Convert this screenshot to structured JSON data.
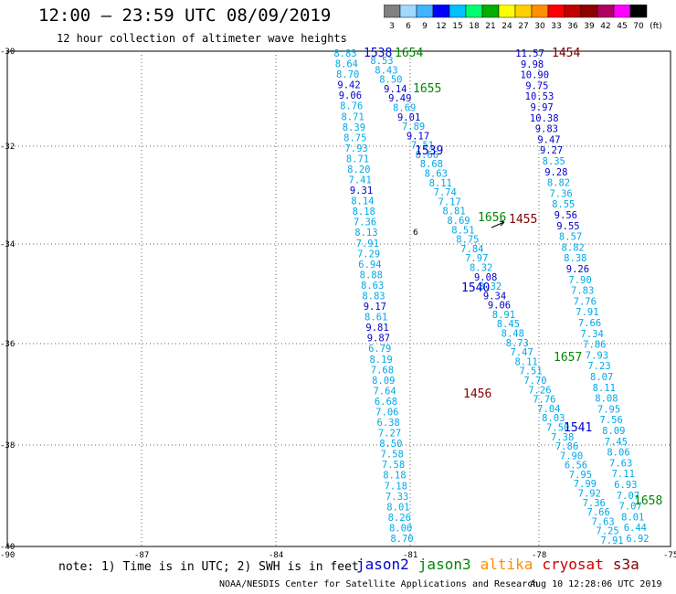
{
  "header": {
    "title": "12:00 — 23:59 UTC 08/09/2019",
    "subtitle": "12 hour collection of altimeter wave heights"
  },
  "colorbar": {
    "labels": [
      "3",
      "6",
      "9",
      "12",
      "15",
      "18",
      "21",
      "24",
      "27",
      "30",
      "33",
      "36",
      "39",
      "42",
      "45",
      "70",
      "(ft)"
    ],
    "colors": [
      "#808080",
      "#a0d8ff",
      "#40b4ff",
      "#0000ff",
      "#00c0ff",
      "#00ff70",
      "#00b000",
      "#ffff00",
      "#ffd000",
      "#ff9000",
      "#ff0000",
      "#c00000",
      "#900000",
      "#b00060",
      "#ff00ff",
      "#000000"
    ]
  },
  "map": {
    "lon_ticks": [
      "-90",
      "-87",
      "-84",
      "-81",
      "-78",
      "-75"
    ],
    "lat_ticks": [
      "-30",
      "-32",
      "-34",
      "-36",
      "-38",
      "-40"
    ]
  },
  "passes": [
    {
      "label": "1538",
      "color": "#0000cc"
    },
    {
      "label": "1654",
      "color": "#008800"
    },
    {
      "label": "1454",
      "color": "#800000"
    },
    {
      "label": "1655",
      "color": "#008800"
    },
    {
      "label": "1539",
      "color": "#0000cc"
    },
    {
      "label": "1656",
      "color": "#008800"
    },
    {
      "label": "1455",
      "color": "#800000"
    },
    {
      "label": "1540",
      "color": "#0000cc"
    },
    {
      "label": "1657",
      "color": "#008800"
    },
    {
      "label": "1456",
      "color": "#800000"
    },
    {
      "label": "1541",
      "color": "#0000cc"
    },
    {
      "label": "1658",
      "color": "#008800"
    }
  ],
  "tracks": {
    "a_values": [
      "8.83",
      "8.64",
      "8.70",
      "9.42",
      "9.06",
      "8.76",
      "8.71",
      "8.39",
      "8.75",
      "7.93",
      "8.71",
      "8.20",
      "7.41",
      "9.31",
      "8.14",
      "8.18",
      "7.36",
      "8.13",
      "7.91",
      "7.29",
      "6.94",
      "8.88",
      "8.63",
      "8.83",
      "9.17",
      "8.61",
      "9.81",
      "9.87",
      "6.79",
      "8.19",
      "7.68",
      "8.09",
      "7.64",
      "6.68",
      "7.06",
      "6.38",
      "7.27",
      "8.50",
      "7.58",
      "7.58",
      "8.18",
      "7.18",
      "7.33",
      "8.01",
      "8.26",
      "8.00",
      "8.70"
    ],
    "b_values": [
      "8.53",
      "8.43",
      "8.50",
      "9.14",
      "9.49",
      "8.69",
      "9.01",
      "7.89",
      "9.17",
      "7.51",
      "8.66",
      "8.68",
      "8.63",
      "8.11",
      "7.74",
      "7.17",
      "8.81",
      "8.69",
      "8.51",
      "8.75",
      "7.84",
      "7.97",
      "8.32",
      "9.08",
      "8.32",
      "9.34",
      "9.06",
      "8.91",
      "8.45",
      "8.48",
      "8.73",
      "7.47",
      "8.11",
      "7.51",
      "7.70",
      "7.26",
      "7.76",
      "7.04",
      "8.03",
      "7.50",
      "7.38",
      "7.86",
      "7.90",
      "6.56",
      "7.95",
      "7.99",
      "7.92",
      "7.36",
      "7.66",
      "7.63",
      "7.25",
      "7.91"
    ],
    "c_values": [
      "11.57",
      "9.98",
      "10.90",
      "9.75",
      "10.53",
      "9.97",
      "10.38",
      "9.83",
      "9.47",
      "9.27",
      "8.35",
      "9.28",
      "8.82",
      "7.36",
      "8.55",
      "9.56",
      "9.55",
      "8.57",
      "8.82",
      "8.38",
      "9.26",
      "7.90",
      "7.83",
      "7.76",
      "7.91",
      "7.66",
      "7.34",
      "7.86",
      "7.93",
      "7.23",
      "8.07",
      "8.11",
      "8.08",
      "7.95",
      "7.56",
      "8.09",
      "7.45",
      "8.06",
      "7.63",
      "7.11",
      "6.93",
      "7.07",
      "7.07",
      "8.01",
      "6.44",
      "6.92"
    ]
  },
  "note": "note: 1) Time is in UTC; 2) SWH is in feet",
  "legend": [
    {
      "name": "jason2",
      "color": "#0000cc"
    },
    {
      "name": "jason3",
      "color": "#008800"
    },
    {
      "name": "altika",
      "color": "#ff8c00"
    },
    {
      "name": "cryosat",
      "color": "#cc0000"
    },
    {
      "name": "s3a",
      "color": "#800000"
    }
  ],
  "footer": {
    "credit": "NOAA/NESDIS Center for Satellite Applications and Research",
    "timestamp": "Aug 10 12:28:06 UTC 2019"
  }
}
